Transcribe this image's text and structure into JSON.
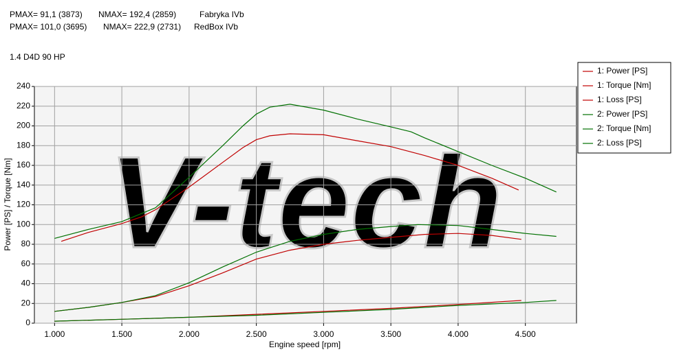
{
  "chart_data": {
    "type": "line",
    "annotations": [
      [
        "PMAX= 91,1 (3873)",
        "NMAX= 192,4 (2859)",
        "Fabryka IVb"
      ],
      [
        "PMAX= 101,0 (3695)",
        "NMAX= 222,9 (2731)",
        "RedBox IVb"
      ]
    ],
    "subtitle": "1.4 D4D 90 HP",
    "watermark": "V-tech",
    "x_label": "Engine speed [rpm]",
    "y_label": "Power [PS] / Torque [Nm]",
    "xlim": [
      850,
      4880
    ],
    "ylim": [
      0,
      240
    ],
    "xticks": [
      {
        "value": 1000,
        "label": "1.000"
      },
      {
        "value": 1500,
        "label": "1.500"
      },
      {
        "value": 2000,
        "label": "2.000"
      },
      {
        "value": 2500,
        "label": "2.500"
      },
      {
        "value": 3000,
        "label": "3.000"
      },
      {
        "value": 3500,
        "label": "3.500"
      },
      {
        "value": 4000,
        "label": "4.000"
      },
      {
        "value": 4500,
        "label": "4.500"
      }
    ],
    "yticks": [
      0,
      20,
      40,
      60,
      80,
      100,
      120,
      140,
      160,
      180,
      200,
      220,
      240
    ],
    "grid": true,
    "legend": "right",
    "series": [
      {
        "name": "1: Power [PS]",
        "color": "#c00000",
        "x": [
          1000,
          1250,
          1500,
          1750,
          2000,
          2250,
          2500,
          2750,
          3000,
          3250,
          3500,
          3750,
          4000,
          4250,
          4470
        ],
        "values": [
          12,
          16,
          21,
          27,
          38,
          51,
          65,
          74,
          80,
          84,
          87,
          90,
          91,
          89,
          85
        ]
      },
      {
        "name": "1: Torque [Nm]",
        "color": "#c00000",
        "x": [
          1050,
          1250,
          1500,
          1650,
          1750,
          2000,
          2250,
          2400,
          2500,
          2600,
          2750,
          3000,
          3250,
          3500,
          3750,
          4000,
          4250,
          4450
        ],
        "values": [
          83,
          92,
          101,
          108,
          115,
          138,
          163,
          178,
          186,
          190,
          192,
          191,
          185,
          179,
          170,
          160,
          147,
          135
        ]
      },
      {
        "name": "1: Loss [PS]",
        "color": "#c00000",
        "x": [
          1000,
          1500,
          2000,
          2500,
          3000,
          3500,
          4000,
          4470
        ],
        "values": [
          2,
          4,
          6,
          9,
          12,
          15,
          19,
          23
        ]
      },
      {
        "name": "2: Power [PS]",
        "color": "#007000",
        "x": [
          1000,
          1250,
          1500,
          1750,
          2000,
          2250,
          2500,
          2750,
          3000,
          3250,
          3500,
          3700,
          4000,
          4250,
          4500,
          4730
        ],
        "values": [
          12,
          16,
          21,
          28,
          41,
          57,
          72,
          83,
          90,
          95,
          98,
          100,
          99,
          95,
          91,
          88
        ]
      },
      {
        "name": "2: Torque [Nm]",
        "color": "#007000",
        "x": [
          1000,
          1250,
          1500,
          1750,
          2000,
          2250,
          2400,
          2500,
          2600,
          2750,
          3000,
          3250,
          3500,
          3650,
          3750,
          4000,
          4250,
          4500,
          4730
        ],
        "values": [
          86,
          95,
          103,
          117,
          148,
          180,
          200,
          212,
          219,
          222,
          216,
          207,
          199,
          194,
          188,
          174,
          160,
          147,
          133
        ]
      },
      {
        "name": "2: Loss [PS]",
        "color": "#007000",
        "x": [
          1000,
          1500,
          2000,
          2500,
          3000,
          3500,
          4000,
          4500,
          4730
        ],
        "values": [
          2,
          4,
          6,
          8,
          11,
          14,
          18,
          21,
          23
        ]
      }
    ]
  }
}
